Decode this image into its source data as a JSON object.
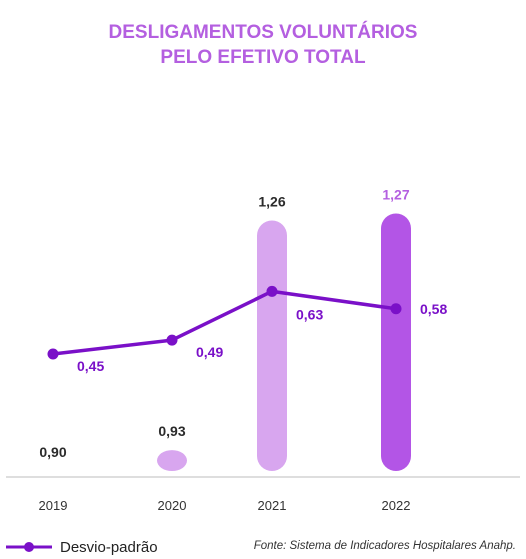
{
  "title_line1": "DESLIGAMENTOS VOLUNTÁRIOS",
  "title_line2": "PELO EFETIVO TOTAL",
  "legend_label": "Desvio-padrão",
  "source": "Fonte: Sistema de Indicadores Hospitalares Anahp.",
  "colors": {
    "title": "#b45fe0",
    "bar": "#d8a6ef",
    "bar_highlight": "#b355e6",
    "line": "#7a10c8",
    "bar_label": "#2b2b2b",
    "highlight_label": "#b45fe0"
  },
  "chart_data": {
    "type": "bar",
    "categories": [
      "2019",
      "2020",
      "2021",
      "2022"
    ],
    "series": [
      {
        "type": "bar",
        "values": [
          0.9,
          0.93,
          1.26,
          1.27
        ],
        "labels": [
          "0,90",
          "0,93",
          "1,26",
          "1,27"
        ]
      },
      {
        "name": "Desvio-padrão",
        "type": "line",
        "values": [
          0.45,
          0.49,
          0.63,
          0.58
        ],
        "labels": [
          "0,45",
          "0,49",
          "0,63",
          "0,58"
        ]
      }
    ],
    "highlight_category": "2022",
    "grid": false,
    "legend": "bottom-left"
  }
}
